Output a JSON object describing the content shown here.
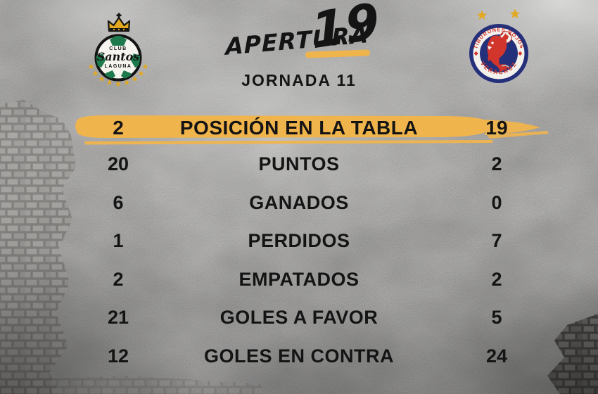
{
  "colors": {
    "accent": "#F0B44C",
    "text": "#141414",
    "background": "#C7C6C4",
    "gold": "#E2A81F",
    "santos_green": "#1E7A4C",
    "veracruz_navy": "#25307A",
    "veracruz_red": "#D2352B"
  },
  "header": {
    "tournament_name": "APERTURA",
    "tournament_year": "19",
    "matchday_label": "JORNADA 11"
  },
  "teams": {
    "home_badge": {
      "line1": "CLUB",
      "line2": "Santos",
      "line3": "LAGUNA"
    },
    "away_badge": {
      "ring_top": "TIBURONES ROJOS",
      "ring_bottom": "VERACRUZ"
    }
  },
  "stats": {
    "highlight": {
      "label": "POSICIÓN EN LA TABLA",
      "home": "2",
      "away": "19"
    },
    "rows": [
      {
        "label": "PUNTOS",
        "home": "20",
        "away": "2"
      },
      {
        "label": "GANADOS",
        "home": "6",
        "away": "0"
      },
      {
        "label": "PERDIDOS",
        "home": "1",
        "away": "7"
      },
      {
        "label": "EMPATADOS",
        "home": "2",
        "away": "2"
      },
      {
        "label": "GOLES A FAVOR",
        "home": "21",
        "away": "5"
      },
      {
        "label": "GOLES EN CONTRA",
        "home": "12",
        "away": "24"
      }
    ]
  },
  "chart_data": {
    "type": "table",
    "title": "APERTURA 19 — JORNADA 11",
    "categories": [
      "POSICIÓN EN LA TABLA",
      "PUNTOS",
      "GANADOS",
      "PERDIDOS",
      "EMPATADOS",
      "GOLES A FAVOR",
      "GOLES EN CONTRA"
    ],
    "series": [
      {
        "name": "CLUB SANTOS LAGUNA",
        "values": [
          2,
          20,
          6,
          1,
          2,
          21,
          12
        ]
      },
      {
        "name": "TIBURONES ROJOS VERACRUZ",
        "values": [
          19,
          2,
          0,
          7,
          2,
          5,
          24
        ]
      }
    ],
    "legend_position": "top",
    "grid": false
  }
}
